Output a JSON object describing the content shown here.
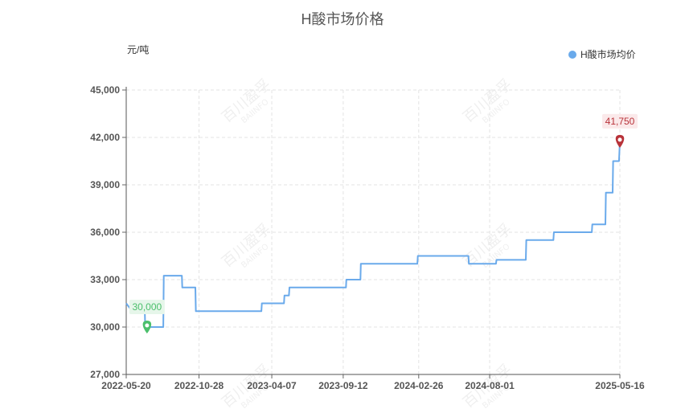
{
  "chart_data": {
    "type": "line",
    "title": "H酸市场价格",
    "unit_label": "元/吨",
    "xlabel": "",
    "ylabel": "元/吨",
    "ylim": [
      27000,
      45000
    ],
    "yticks": [
      "27,000",
      "30,000",
      "33,000",
      "36,000",
      "39,000",
      "42,000",
      "45,000"
    ],
    "ytick_values": [
      27000,
      30000,
      33000,
      36000,
      39000,
      42000,
      45000
    ],
    "xticks": [
      "2022-05-20",
      "2022-10-28",
      "2023-04-07",
      "2023-09-12",
      "2024-02-26",
      "2024-08-01",
      "2025-05-16"
    ],
    "xtick_dates": [
      "2022-05-20",
      "2022-10-28",
      "2023-04-07",
      "2023-09-12",
      "2024-02-26",
      "2024-08-01",
      "2025-05-16"
    ],
    "grid": true,
    "legend_position": "top-right",
    "series": [
      {
        "name": "H酸市场均价",
        "color": "#6aaaeb",
        "step": true,
        "points": [
          [
            "2022-05-20",
            31500
          ],
          [
            "2022-06-02",
            31000
          ],
          [
            "2022-06-30",
            31000
          ],
          [
            "2022-07-01",
            30000
          ],
          [
            "2022-08-10",
            30000
          ],
          [
            "2022-08-11",
            33250
          ],
          [
            "2022-09-20",
            33250
          ],
          [
            "2022-09-21",
            32500
          ],
          [
            "2022-10-20",
            32500
          ],
          [
            "2022-10-21",
            31000
          ],
          [
            "2023-03-15",
            31000
          ],
          [
            "2023-03-16",
            31500
          ],
          [
            "2023-05-04",
            31500
          ],
          [
            "2023-05-05",
            32000
          ],
          [
            "2023-05-15",
            32000
          ],
          [
            "2023-05-16",
            32500
          ],
          [
            "2023-09-18",
            32500
          ],
          [
            "2023-09-19",
            33000
          ],
          [
            "2023-10-20",
            33000
          ],
          [
            "2023-10-21",
            34000
          ],
          [
            "2024-02-23",
            34000
          ],
          [
            "2024-02-24",
            34500
          ],
          [
            "2024-06-15",
            34500
          ],
          [
            "2024-06-16",
            34000
          ],
          [
            "2024-08-15",
            34000
          ],
          [
            "2024-08-16",
            34250
          ],
          [
            "2024-10-20",
            34250
          ],
          [
            "2024-10-21",
            35500
          ],
          [
            "2024-12-20",
            35500
          ],
          [
            "2024-12-21",
            36000
          ],
          [
            "2025-03-15",
            36000
          ],
          [
            "2025-03-16",
            36500
          ],
          [
            "2025-04-14",
            36500
          ],
          [
            "2025-04-15",
            38500
          ],
          [
            "2025-04-30",
            38500
          ],
          [
            "2025-05-01",
            40500
          ],
          [
            "2025-05-14",
            40500
          ],
          [
            "2025-05-16",
            41750
          ]
        ]
      }
    ],
    "annotations": [
      {
        "type": "min",
        "label": "30,000",
        "date": "2022-07-05",
        "value": 30000,
        "color": "#4bbf6b"
      },
      {
        "type": "max",
        "label": "41,750",
        "date": "2025-05-16",
        "value": 41750,
        "color": "#b8333a"
      }
    ],
    "watermark": "百川盈孚 BAIINFO"
  }
}
